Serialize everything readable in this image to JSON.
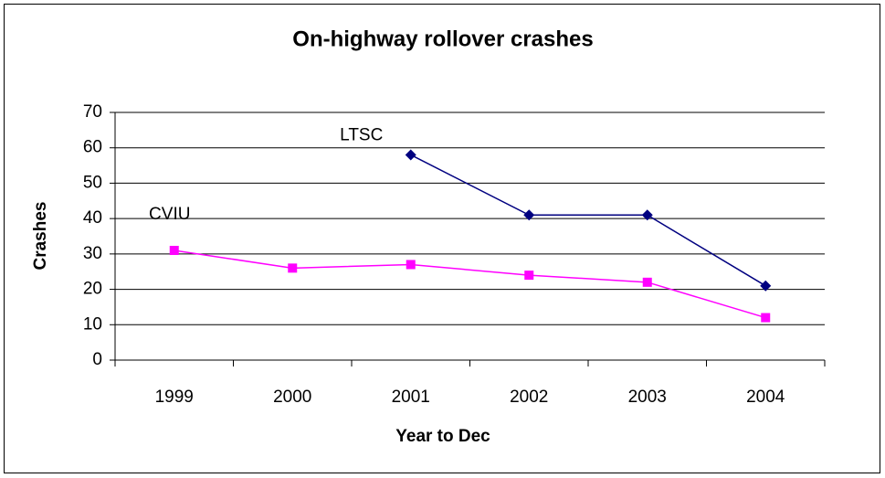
{
  "chart_data": {
    "type": "line",
    "title": "On-highway rollover crashes",
    "x_label": "Year to Dec",
    "y_label": "Crashes",
    "categories": [
      "1999",
      "2000",
      "2001",
      "2002",
      "2003",
      "2004"
    ],
    "series": [
      {
        "name": "LTSC",
        "color": "#000080",
        "marker": "diamond",
        "values": [
          null,
          null,
          58,
          41,
          41,
          21
        ]
      },
      {
        "name": "CVIU",
        "color": "#ff00ff",
        "marker": "square",
        "values": [
          31,
          26,
          27,
          24,
          22,
          12
        ]
      }
    ],
    "ylim": [
      0,
      70
    ],
    "yticks": [
      0,
      10,
      20,
      30,
      40,
      50,
      60,
      70
    ],
    "grid": true
  }
}
